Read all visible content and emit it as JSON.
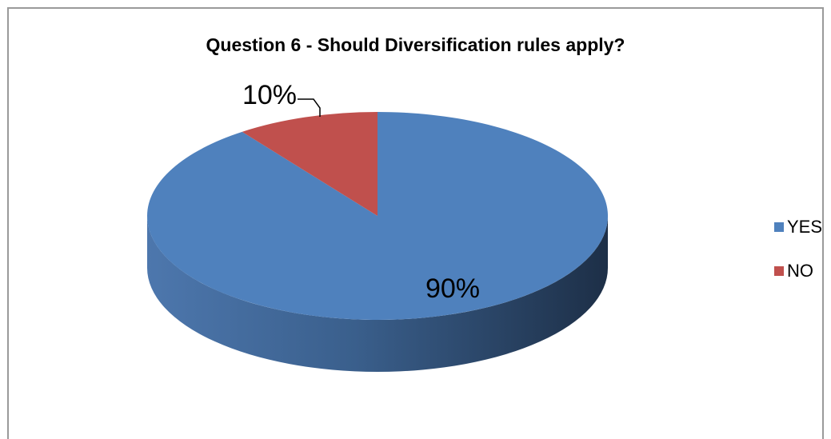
{
  "chart_data": {
    "type": "pie",
    "title": "Question 6 - Should Diversification rules apply?",
    "categories": [
      "YES",
      "NO"
    ],
    "values": [
      90,
      10
    ],
    "data_labels": [
      "90%",
      "10%"
    ],
    "colors": [
      "#4F81BD",
      "#C0504D"
    ],
    "style": "3d",
    "legend": "right"
  }
}
